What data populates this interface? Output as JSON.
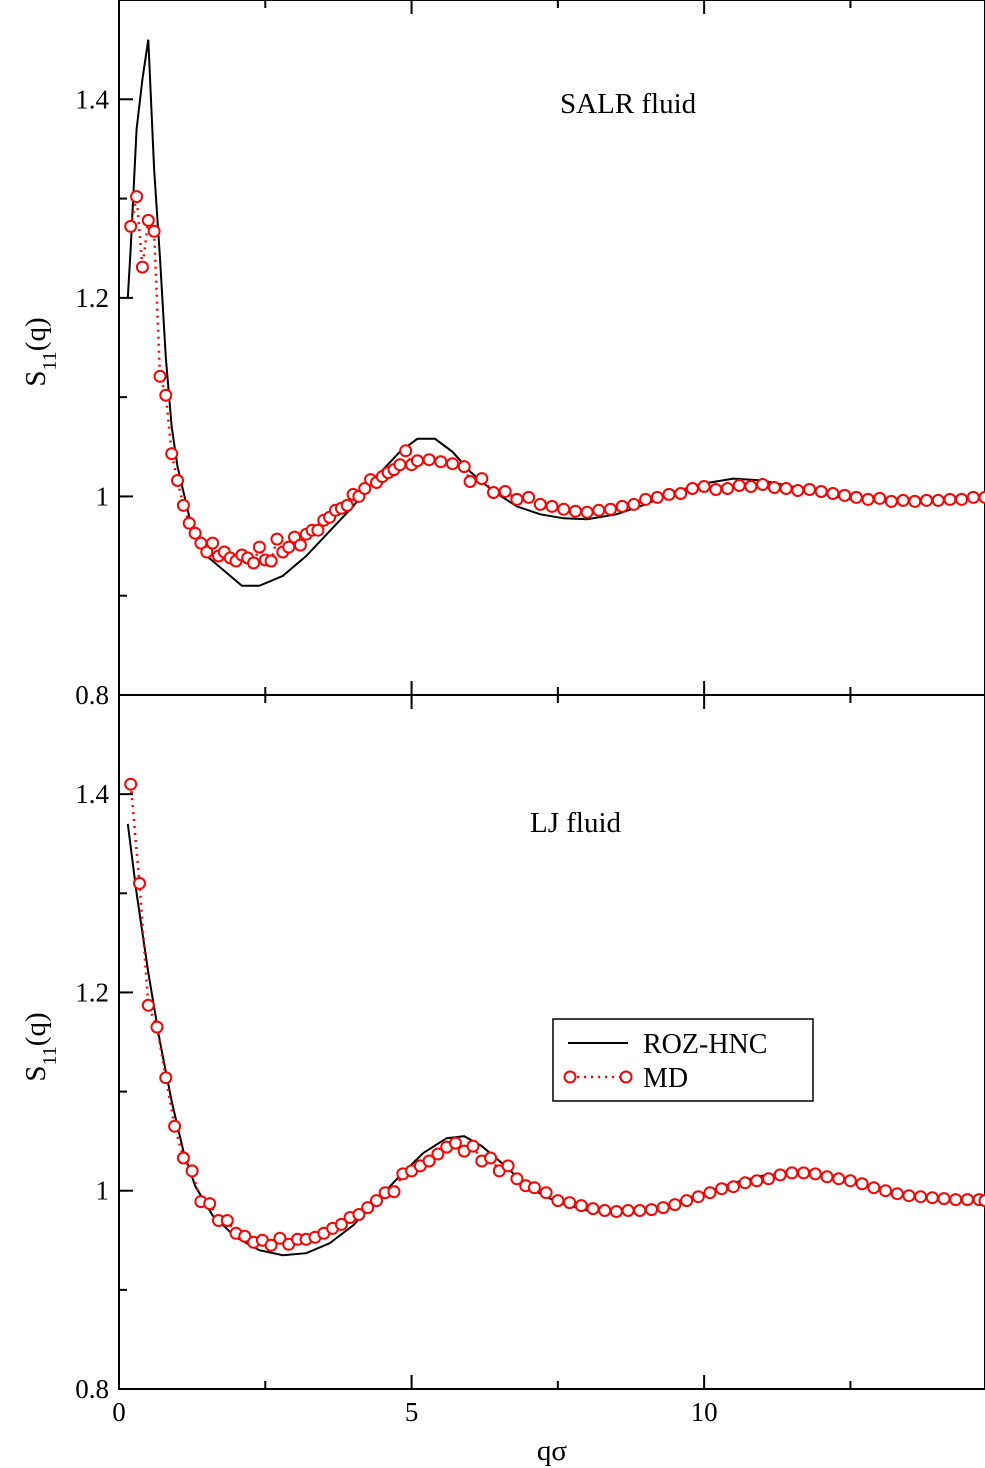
{
  "chart_data": [
    {
      "type": "line",
      "annotation": "SALR fluid",
      "xlabel": "",
      "ylabel": "S11(q)",
      "ylabel_main": "S",
      "ylabel_sub": "11",
      "ylabel_rest": "(q)",
      "xlim": [
        0,
        14.8
      ],
      "ylim": [
        0.8,
        1.5
      ],
      "yticks": [
        0.8,
        1.0,
        1.2,
        1.4
      ],
      "ytick_labels": [
        "0.8",
        "1",
        "1.2",
        "1.4"
      ],
      "series": [
        {
          "name": "ROZ-HNC",
          "style": "line",
          "color": "#000000",
          "points": [
            [
              0.15,
              1.2
            ],
            [
              0.2,
              1.25
            ],
            [
              0.3,
              1.37
            ],
            [
              0.4,
              1.42
            ],
            [
              0.5,
              1.46
            ],
            [
              0.6,
              1.33
            ],
            [
              0.7,
              1.24
            ],
            [
              0.8,
              1.14
            ],
            [
              0.9,
              1.07
            ],
            [
              1.0,
              1.03
            ],
            [
              1.2,
              0.98
            ],
            [
              1.5,
              0.94
            ],
            [
              1.8,
              0.925
            ],
            [
              2.1,
              0.91
            ],
            [
              2.4,
              0.91
            ],
            [
              2.8,
              0.92
            ],
            [
              3.2,
              0.94
            ],
            [
              3.6,
              0.965
            ],
            [
              4.0,
              0.99
            ],
            [
              4.4,
              1.02
            ],
            [
              4.8,
              1.045
            ],
            [
              5.1,
              1.058
            ],
            [
              5.4,
              1.058
            ],
            [
              5.7,
              1.045
            ],
            [
              6.0,
              1.025
            ],
            [
              6.4,
              1.005
            ],
            [
              6.8,
              0.99
            ],
            [
              7.2,
              0.982
            ],
            [
              7.6,
              0.978
            ],
            [
              8.0,
              0.977
            ],
            [
              8.5,
              0.982
            ],
            [
              9.0,
              0.992
            ],
            [
              9.5,
              1.005
            ],
            [
              10.0,
              1.013
            ],
            [
              10.5,
              1.018
            ],
            [
              11.0,
              1.016
            ],
            [
              11.5,
              1.01
            ],
            [
              12.0,
              1.003
            ],
            [
              12.5,
              0.997
            ],
            [
              13.0,
              0.995
            ],
            [
              13.5,
              0.996
            ],
            [
              14.0,
              0.998
            ],
            [
              14.5,
              1.0
            ],
            [
              14.8,
              1.0
            ]
          ]
        },
        {
          "name": "MD",
          "style": "markers-dotted",
          "color": "#ff0000",
          "points": [
            [
              0.2,
              1.272
            ],
            [
              0.3,
              1.302
            ],
            [
              0.4,
              1.231
            ],
            [
              0.5,
              1.278
            ],
            [
              0.6,
              1.267
            ],
            [
              0.7,
              1.121
            ],
            [
              0.8,
              1.102
            ],
            [
              0.9,
              1.043
            ],
            [
              1.0,
              1.016
            ],
            [
              1.1,
              0.991
            ],
            [
              1.2,
              0.973
            ],
            [
              1.3,
              0.963
            ],
            [
              1.4,
              0.953
            ],
            [
              1.5,
              0.944
            ],
            [
              1.6,
              0.953
            ],
            [
              1.7,
              0.94
            ],
            [
              1.8,
              0.944
            ],
            [
              1.9,
              0.938
            ],
            [
              2.0,
              0.935
            ],
            [
              2.1,
              0.941
            ],
            [
              2.2,
              0.938
            ],
            [
              2.3,
              0.933
            ],
            [
              2.4,
              0.949
            ],
            [
              2.5,
              0.936
            ],
            [
              2.6,
              0.935
            ],
            [
              2.7,
              0.957
            ],
            [
              2.8,
              0.944
            ],
            [
              2.9,
              0.949
            ],
            [
              3.0,
              0.959
            ],
            [
              3.1,
              0.951
            ],
            [
              3.2,
              0.962
            ],
            [
              3.3,
              0.966
            ],
            [
              3.4,
              0.966
            ],
            [
              3.5,
              0.976
            ],
            [
              3.6,
              0.979
            ],
            [
              3.7,
              0.986
            ],
            [
              3.8,
              0.988
            ],
            [
              3.9,
              0.991
            ],
            [
              4.0,
              1.002
            ],
            [
              4.1,
              1.0
            ],
            [
              4.2,
              1.008
            ],
            [
              4.3,
              1.017
            ],
            [
              4.4,
              1.014
            ],
            [
              4.5,
              1.02
            ],
            [
              4.6,
              1.024
            ],
            [
              4.7,
              1.027
            ],
            [
              4.8,
              1.032
            ],
            [
              4.9,
              1.046
            ],
            [
              5.0,
              1.032
            ],
            [
              5.1,
              1.036
            ],
            [
              5.3,
              1.037
            ],
            [
              5.5,
              1.035
            ],
            [
              5.7,
              1.033
            ],
            [
              5.9,
              1.03
            ],
            [
              6.0,
              1.015
            ],
            [
              6.2,
              1.018
            ],
            [
              6.4,
              1.004
            ],
            [
              6.6,
              1.005
            ],
            [
              6.8,
              0.997
            ],
            [
              7.0,
              0.999
            ],
            [
              7.2,
              0.992
            ],
            [
              7.4,
              0.99
            ],
            [
              7.6,
              0.987
            ],
            [
              7.8,
              0.985
            ],
            [
              8.0,
              0.984
            ],
            [
              8.2,
              0.986
            ],
            [
              8.4,
              0.987
            ],
            [
              8.6,
              0.99
            ],
            [
              8.8,
              0.992
            ],
            [
              9.0,
              0.997
            ],
            [
              9.2,
              0.999
            ],
            [
              9.4,
              1.002
            ],
            [
              9.6,
              1.003
            ],
            [
              9.8,
              1.008
            ],
            [
              10.0,
              1.01
            ],
            [
              10.2,
              1.007
            ],
            [
              10.4,
              1.008
            ],
            [
              10.6,
              1.011
            ],
            [
              10.8,
              1.01
            ],
            [
              11.0,
              1.012
            ],
            [
              11.2,
              1.009
            ],
            [
              11.4,
              1.008
            ],
            [
              11.6,
              1.006
            ],
            [
              11.8,
              1.007
            ],
            [
              12.0,
              1.005
            ],
            [
              12.2,
              1.003
            ],
            [
              12.4,
              1.001
            ],
            [
              12.6,
              0.999
            ],
            [
              12.8,
              0.997
            ],
            [
              13.0,
              0.998
            ],
            [
              13.2,
              0.995
            ],
            [
              13.4,
              0.996
            ],
            [
              13.6,
              0.995
            ],
            [
              13.8,
              0.996
            ],
            [
              14.0,
              0.996
            ],
            [
              14.2,
              0.997
            ],
            [
              14.4,
              0.997
            ],
            [
              14.6,
              0.999
            ],
            [
              14.8,
              0.999
            ]
          ]
        }
      ]
    },
    {
      "type": "line",
      "annotation": "LJ fluid",
      "xlabel": "qσ",
      "ylabel": "S11(q)",
      "ylabel_main": "S",
      "ylabel_sub": "11",
      "ylabel_rest": "(q)",
      "xlim": [
        0,
        14.8
      ],
      "ylim": [
        0.8,
        1.5
      ],
      "xticks": [
        0,
        5,
        10
      ],
      "xtick_labels": [
        "0",
        "5",
        "10"
      ],
      "yticks": [
        0.8,
        1.0,
        1.2,
        1.4
      ],
      "ytick_labels": [
        "0.8",
        "1",
        "1.2",
        "1.4"
      ],
      "legend": {
        "placement": "center-right",
        "entries": [
          "ROZ-HNC",
          "MD"
        ]
      },
      "series": [
        {
          "name": "ROZ-HNC",
          "style": "line",
          "color": "#000000",
          "points": [
            [
              0.15,
              1.37
            ],
            [
              0.3,
              1.3
            ],
            [
              0.5,
              1.22
            ],
            [
              0.7,
              1.15
            ],
            [
              0.9,
              1.09
            ],
            [
              1.1,
              1.04
            ],
            [
              1.3,
              1.005
            ],
            [
              1.6,
              0.975
            ],
            [
              2.0,
              0.953
            ],
            [
              2.4,
              0.94
            ],
            [
              2.8,
              0.935
            ],
            [
              3.2,
              0.937
            ],
            [
              3.6,
              0.947
            ],
            [
              4.0,
              0.965
            ],
            [
              4.4,
              0.99
            ],
            [
              4.8,
              1.015
            ],
            [
              5.2,
              1.038
            ],
            [
              5.6,
              1.053
            ],
            [
              5.9,
              1.055
            ],
            [
              6.2,
              1.045
            ],
            [
              6.6,
              1.025
            ],
            [
              7.0,
              1.003
            ],
            [
              7.5,
              0.988
            ],
            [
              8.0,
              0.98
            ],
            [
              8.5,
              0.978
            ],
            [
              9.0,
              0.98
            ],
            [
              9.5,
              0.988
            ],
            [
              10.0,
              0.998
            ],
            [
              10.5,
              1.008
            ],
            [
              11.0,
              1.015
            ],
            [
              11.5,
              1.018
            ],
            [
              12.0,
              1.016
            ],
            [
              12.5,
              1.009
            ],
            [
              13.0,
              1.002
            ],
            [
              13.5,
              0.996
            ],
            [
              14.0,
              0.993
            ],
            [
              14.8,
              0.992
            ]
          ]
        },
        {
          "name": "MD",
          "style": "markers-dotted",
          "color": "#ff0000",
          "points": [
            [
              0.2,
              1.41
            ],
            [
              0.35,
              1.31
            ],
            [
              0.5,
              1.187
            ],
            [
              0.65,
              1.165
            ],
            [
              0.8,
              1.114
            ],
            [
              0.95,
              1.065
            ],
            [
              1.1,
              1.033
            ],
            [
              1.25,
              1.02
            ],
            [
              1.4,
              0.989
            ],
            [
              1.55,
              0.987
            ],
            [
              1.7,
              0.97
            ],
            [
              1.85,
              0.97
            ],
            [
              2.0,
              0.957
            ],
            [
              2.15,
              0.954
            ],
            [
              2.3,
              0.948
            ],
            [
              2.45,
              0.95
            ],
            [
              2.6,
              0.945
            ],
            [
              2.75,
              0.952
            ],
            [
              2.9,
              0.946
            ],
            [
              3.05,
              0.951
            ],
            [
              3.2,
              0.951
            ],
            [
              3.35,
              0.953
            ],
            [
              3.5,
              0.957
            ],
            [
              3.65,
              0.962
            ],
            [
              3.8,
              0.966
            ],
            [
              3.95,
              0.973
            ],
            [
              4.1,
              0.976
            ],
            [
              4.25,
              0.983
            ],
            [
              4.4,
              0.99
            ],
            [
              4.55,
              0.998
            ],
            [
              4.7,
              0.999
            ],
            [
              4.85,
              1.017
            ],
            [
              5.0,
              1.02
            ],
            [
              5.15,
              1.025
            ],
            [
              5.3,
              1.03
            ],
            [
              5.45,
              1.037
            ],
            [
              5.6,
              1.044
            ],
            [
              5.75,
              1.048
            ],
            [
              5.9,
              1.04
            ],
            [
              6.05,
              1.045
            ],
            [
              6.2,
              1.03
            ],
            [
              6.35,
              1.033
            ],
            [
              6.5,
              1.02
            ],
            [
              6.65,
              1.025
            ],
            [
              6.8,
              1.012
            ],
            [
              6.95,
              1.005
            ],
            [
              7.1,
              1.003
            ],
            [
              7.3,
              0.998
            ],
            [
              7.5,
              0.99
            ],
            [
              7.7,
              0.988
            ],
            [
              7.9,
              0.985
            ],
            [
              8.1,
              0.982
            ],
            [
              8.3,
              0.98
            ],
            [
              8.5,
              0.979
            ],
            [
              8.7,
              0.98
            ],
            [
              8.9,
              0.98
            ],
            [
              9.1,
              0.981
            ],
            [
              9.3,
              0.983
            ],
            [
              9.5,
              0.986
            ],
            [
              9.7,
              0.99
            ],
            [
              9.9,
              0.994
            ],
            [
              10.1,
              0.998
            ],
            [
              10.3,
              1.002
            ],
            [
              10.5,
              1.004
            ],
            [
              10.7,
              1.008
            ],
            [
              10.9,
              1.01
            ],
            [
              11.1,
              1.012
            ],
            [
              11.3,
              1.016
            ],
            [
              11.5,
              1.018
            ],
            [
              11.7,
              1.018
            ],
            [
              11.9,
              1.017
            ],
            [
              12.1,
              1.014
            ],
            [
              12.3,
              1.012
            ],
            [
              12.5,
              1.01
            ],
            [
              12.7,
              1.007
            ],
            [
              12.9,
              1.003
            ],
            [
              13.1,
              1.0
            ],
            [
              13.3,
              0.997
            ],
            [
              13.5,
              0.995
            ],
            [
              13.7,
              0.994
            ],
            [
              13.9,
              0.993
            ],
            [
              14.1,
              0.992
            ],
            [
              14.3,
              0.991
            ],
            [
              14.5,
              0.991
            ],
            [
              14.7,
              0.991
            ],
            [
              14.8,
              0.99
            ]
          ]
        }
      ]
    }
  ]
}
